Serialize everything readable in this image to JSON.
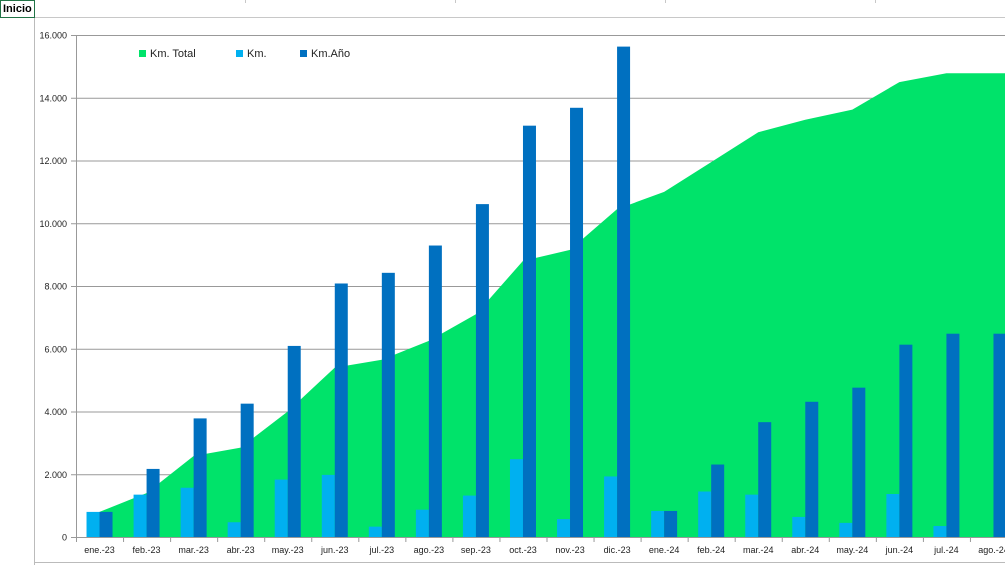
{
  "sheet": {
    "cell_label": "Inicio"
  },
  "chart_data": {
    "type": "bar",
    "categories": [
      "ene.-23",
      "feb.-23",
      "mar.-23",
      "abr.-23",
      "may.-23",
      "jun.-23",
      "jul.-23",
      "ago.-23",
      "sep.-23",
      "oct.-23",
      "nov.-23",
      "dic.-23",
      "ene.-24",
      "feb.-24",
      "mar.-24",
      "abr.-24",
      "may.-24",
      "jun.-24",
      "jul.-24",
      "ago.-24"
    ],
    "series": [
      {
        "name": "Km. Total",
        "kind": "area",
        "color": "#00E36A",
        "values": [
          800,
          1400,
          2580,
          2850,
          4000,
          5400,
          5650,
          6250,
          7100,
          8800,
          9150,
          10450,
          11000,
          11950,
          12900,
          13300,
          13620,
          14500,
          14780,
          14780
        ]
      },
      {
        "name": "Km.",
        "kind": "bar",
        "color": "#00B0F0",
        "values": [
          800,
          1350,
          1570,
          470,
          1830,
          1980,
          330,
          870,
          1320,
          2480,
          570,
          1930,
          830,
          1450,
          1350,
          640,
          450,
          1370,
          350,
          null
        ]
      },
      {
        "name": "Km.Año",
        "kind": "bar",
        "color": "#0070C0",
        "values": [
          800,
          2170,
          3780,
          4250,
          6090,
          8080,
          8420,
          9290,
          10610,
          13110,
          13680,
          15630,
          830,
          2310,
          3660,
          4310,
          4760,
          6130,
          6480,
          6480
        ]
      }
    ],
    "yticks": [
      "0",
      "2.000",
      "4.000",
      "6.000",
      "8.000",
      "10.000",
      "12.000",
      "14.000",
      "16.000"
    ],
    "ylim": [
      0,
      16000
    ],
    "grid": true,
    "legend": "top"
  }
}
